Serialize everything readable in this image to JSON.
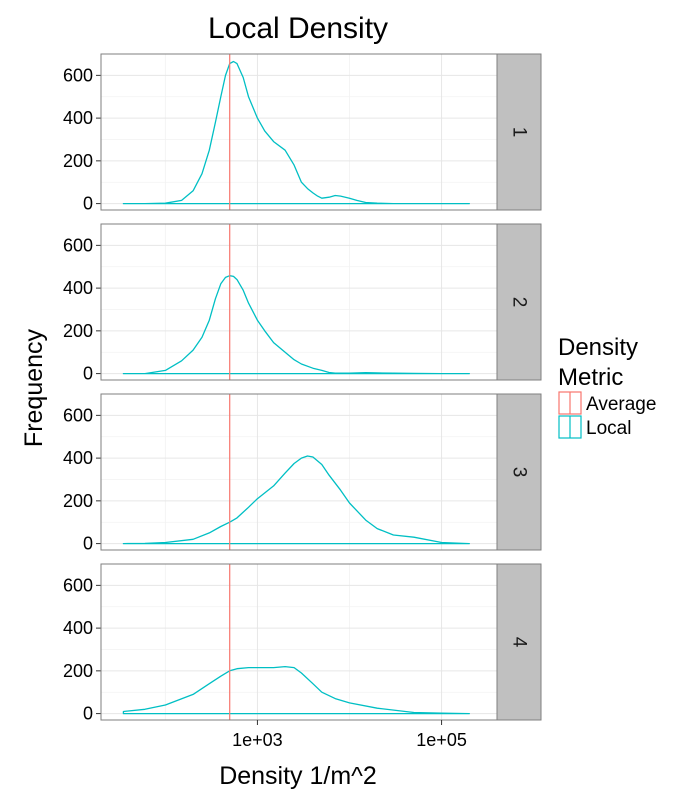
{
  "chart_data": {
    "type": "line",
    "title": "Local Density",
    "xlabel": "Density 1/m^2",
    "ylabel": "Frequency",
    "x_scale": "log10",
    "xlim": [
      20,
      400000
    ],
    "ylim": [
      -30,
      700
    ],
    "x_ticks": [
      1000,
      100000
    ],
    "x_tick_labels": [
      "1e+03",
      "1e+05"
    ],
    "y_ticks": [
      0,
      200,
      400,
      600
    ],
    "y_tick_labels": [
      "0",
      "200",
      "400",
      "600"
    ],
    "grid": true,
    "legend": {
      "title": "Density\nMetric",
      "position": "right",
      "entries": [
        {
          "label": "Average",
          "color": "#F8766D"
        },
        {
          "label": "Local",
          "color": "#00BFC4"
        }
      ]
    },
    "facets": [
      {
        "label": "1",
        "average_x": 500,
        "local_curve": {
          "x": [
            35,
            60,
            100,
            150,
            200,
            250,
            300,
            350,
            400,
            450,
            500,
            550,
            600,
            700,
            800,
            1000,
            1200,
            1500,
            2000,
            2500,
            3000,
            3500,
            4000,
            4500,
            5000,
            6000,
            7000,
            8000,
            10000,
            12000,
            15000,
            20000,
            30000,
            50000,
            100000,
            200000
          ],
          "y": [
            0,
            0,
            2,
            15,
            60,
            140,
            250,
            380,
            500,
            600,
            655,
            665,
            655,
            590,
            500,
            400,
            340,
            290,
            250,
            180,
            100,
            70,
            50,
            35,
            25,
            30,
            38,
            35,
            25,
            15,
            5,
            2,
            0,
            0,
            0,
            0
          ]
        }
      },
      {
        "label": "2",
        "average_x": 500,
        "local_curve": {
          "x": [
            35,
            60,
            100,
            150,
            200,
            250,
            300,
            350,
            400,
            450,
            500,
            550,
            600,
            700,
            800,
            1000,
            1200,
            1500,
            2000,
            2500,
            3000,
            4000,
            5000,
            6000,
            7000,
            8000,
            10000,
            15000,
            20000,
            30000,
            50000,
            100000,
            200000
          ],
          "y": [
            0,
            0,
            15,
            60,
            110,
            170,
            250,
            350,
            420,
            450,
            458,
            455,
            440,
            390,
            330,
            250,
            200,
            145,
            100,
            65,
            45,
            25,
            15,
            5,
            2,
            2,
            2,
            4,
            3,
            2,
            1,
            0,
            0
          ]
        }
      },
      {
        "label": "3",
        "average_x": 500,
        "local_curve": {
          "x": [
            35,
            60,
            100,
            200,
            300,
            400,
            500,
            600,
            800,
            1000,
            1500,
            2000,
            2500,
            3000,
            3500,
            4000,
            5000,
            6000,
            8000,
            10000,
            15000,
            20000,
            30000,
            50000,
            100000,
            200000
          ],
          "y": [
            0,
            1,
            5,
            20,
            50,
            80,
            100,
            120,
            170,
            210,
            270,
            330,
            375,
            400,
            410,
            405,
            370,
            320,
            250,
            190,
            110,
            70,
            40,
            30,
            5,
            0
          ]
        }
      },
      {
        "label": "4",
        "average_x": 500,
        "local_curve": {
          "x": [
            35,
            60,
            100,
            200,
            300,
            400,
            500,
            600,
            800,
            1000,
            1500,
            2000,
            2500,
            3000,
            4000,
            5000,
            7000,
            10000,
            20000,
            50000,
            100000,
            200000
          ],
          "y": [
            10,
            20,
            40,
            90,
            140,
            175,
            200,
            210,
            215,
            215,
            215,
            220,
            215,
            190,
            140,
            100,
            70,
            50,
            25,
            5,
            2,
            0
          ]
        }
      }
    ]
  }
}
